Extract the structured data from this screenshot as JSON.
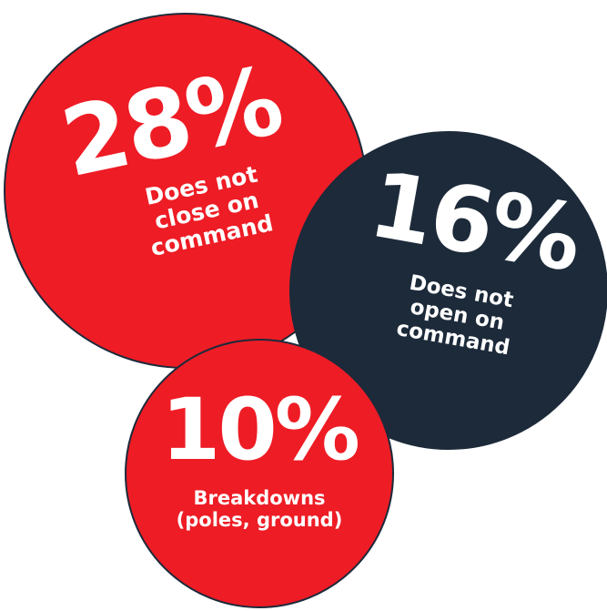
{
  "colors": {
    "red": "#ee1c25",
    "navy": "#1c2a3a",
    "text": "#ffffff"
  },
  "bubbles": [
    {
      "value": "28%",
      "label_lines": [
        "Does not",
        "close on",
        "command"
      ],
      "color": "#ee1c25"
    },
    {
      "value": "16%",
      "label_lines": [
        "Does not",
        "open on",
        "command"
      ],
      "color": "#1c2a3a"
    },
    {
      "value": "10%",
      "label_lines": [
        "Breakdowns",
        "(poles, ground)"
      ],
      "color": "#ee1c25"
    }
  ]
}
